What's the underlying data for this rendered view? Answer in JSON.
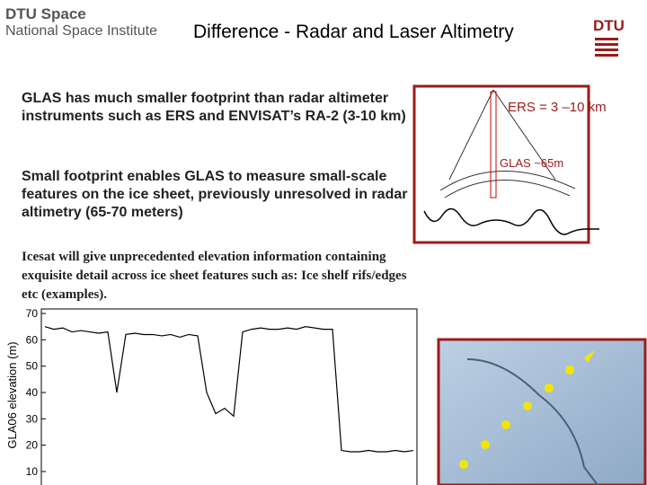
{
  "header": {
    "logo_line1": "DTU Space",
    "logo_line2": "National Space Institute",
    "title": "Difference - Radar and Laser Altimetry",
    "brand": "DTU"
  },
  "bullets": [
    "GLAS has much smaller footprint than radar altimeter instruments such as ERS and ENVISAT’s RA-2 (3-10 km)",
    "Small footprint enables GLAS to measure small-scale features on the ice sheet, previously unresolved in radar altimetry (65-70 meters)",
    "Icesat will give unprecedented elevation information containing exquisite detail across ice sheet features such as: Ice shelf rifs/edges etc (examples)."
  ],
  "diagram": {
    "ers_label": "ERS = 3 –10 km",
    "glas_label": "GLAS ~65m"
  },
  "chart_data": {
    "type": "line",
    "ylabel": "GLA06 elevation (m)",
    "color": "#000000",
    "ylim": [
      10,
      70
    ],
    "yticks": [
      10,
      20,
      30,
      40,
      50,
      60,
      70
    ],
    "values": [
      65,
      64,
      64.5,
      63,
      63.5,
      63,
      62.5,
      63,
      40,
      62,
      62.5,
      62,
      62,
      61.5,
      62,
      61,
      62,
      61.5,
      40,
      32,
      34,
      31,
      63,
      64,
      64.5,
      64,
      64,
      64.5,
      64,
      65,
      64.5,
      64,
      64,
      18,
      17.5,
      17.5,
      18,
      17.5,
      17.5,
      18,
      17.5,
      18
    ]
  }
}
